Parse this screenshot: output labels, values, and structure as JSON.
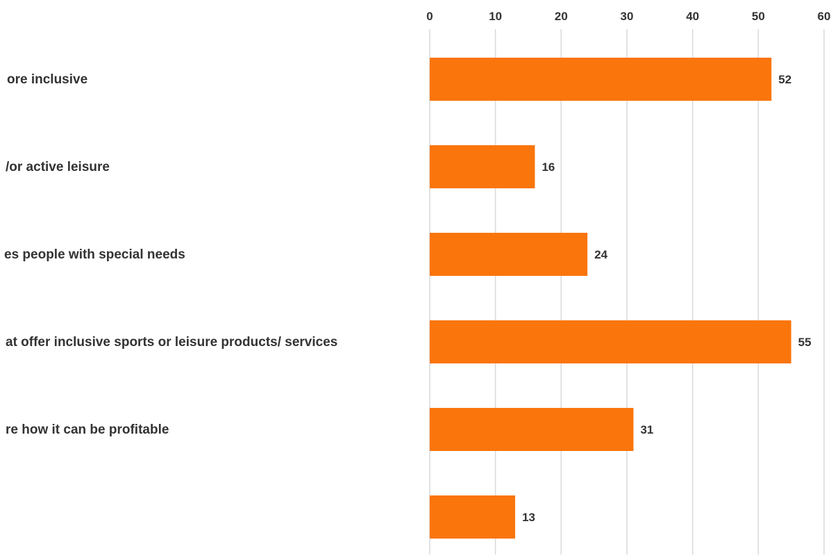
{
  "chart_data": {
    "type": "bar",
    "orientation": "horizontal",
    "categories": [
      "ore inclusive",
      "/or active leisure",
      "es people with special needs",
      "at offer inclusive sports or leisure products/ services",
      "re how it can be profitable",
      ""
    ],
    "values": [
      52,
      16,
      24,
      55,
      31,
      13
    ],
    "x_ticks": [
      "0",
      "10",
      "20",
      "30",
      "40",
      "50",
      "60"
    ],
    "xlim": [
      0,
      60
    ],
    "x_axis_position": "top",
    "grid": true,
    "data_labels": [
      "52",
      "16",
      "24",
      "55",
      "31",
      "13"
    ],
    "title": "",
    "xlabel": "",
    "ylabel": "",
    "colors": {
      "bar": "#FA750B",
      "grid": "#D9D9D9",
      "text": "#333333"
    }
  }
}
